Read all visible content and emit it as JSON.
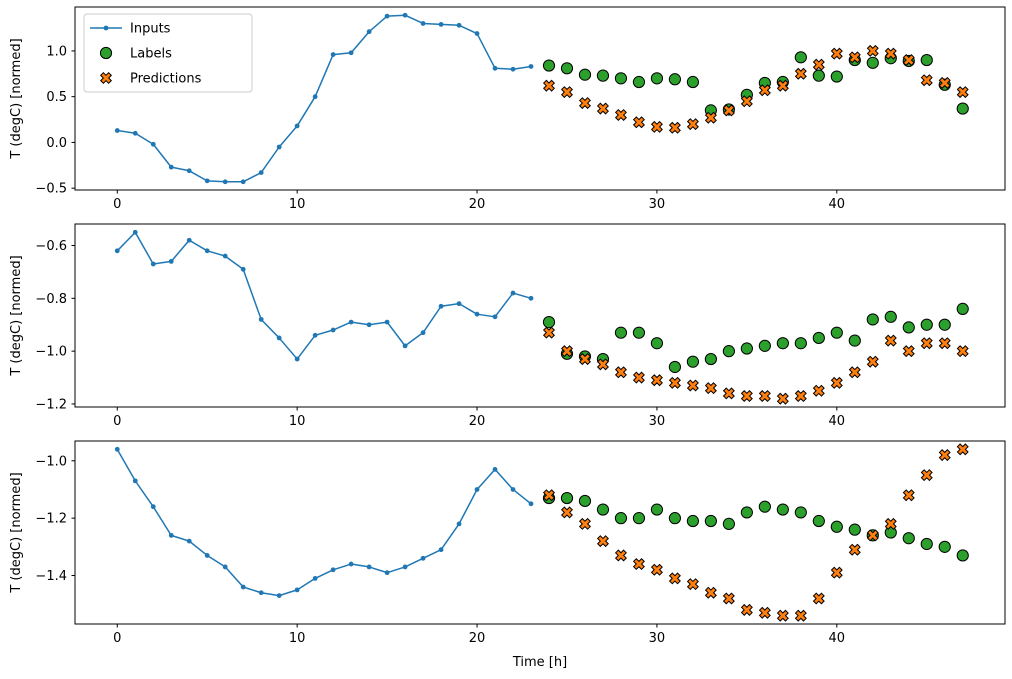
{
  "figure": {
    "background": "#ffffff",
    "axes_background": "#ffffff",
    "spine_color": "#000000",
    "xlabel": "Time [h]",
    "ylabel": "T (degC) [normed]",
    "legend": {
      "position": "upper-left",
      "border_color": "#cccccc",
      "entries": [
        {
          "label": "Inputs",
          "marker": "line-dot",
          "color": "#1f77b4"
        },
        {
          "label": "Labels",
          "marker": "circle",
          "color": "#2ca02c",
          "edge_color": "#000000"
        },
        {
          "label": "Predictions",
          "marker": "X",
          "color": "#ff7f0e",
          "edge_color": "#000000"
        }
      ]
    }
  },
  "chart_data": [
    {
      "type": "line",
      "title": "",
      "xlabel": "",
      "ylabel": "T (degC) [normed]",
      "xlim": [
        -2.35,
        49.35
      ],
      "ylim": [
        -0.52,
        1.48
      ],
      "xticks": [
        0,
        10,
        20,
        30,
        40
      ],
      "yticks": [
        -0.5,
        0.0,
        0.5,
        1.0
      ],
      "grid": false,
      "show_legend": true,
      "show_xlabel": false,
      "series": [
        {
          "name": "Inputs",
          "style": "line-dot",
          "color": "#1f77b4",
          "x": [
            0,
            1,
            2,
            3,
            4,
            5,
            6,
            7,
            8,
            9,
            10,
            11,
            12,
            13,
            14,
            15,
            16,
            17,
            18,
            19,
            20,
            21,
            22,
            23
          ],
          "y": [
            0.13,
            0.1,
            -0.02,
            -0.27,
            -0.31,
            -0.42,
            -0.43,
            -0.43,
            -0.33,
            -0.05,
            0.18,
            0.5,
            0.96,
            0.98,
            1.21,
            1.38,
            1.39,
            1.3,
            1.29,
            1.28,
            1.19,
            0.81,
            0.8,
            0.83
          ]
        },
        {
          "name": "Labels",
          "style": "circle",
          "color": "#2ca02c",
          "edge": "#000000",
          "x": [
            24,
            25,
            26,
            27,
            28,
            29,
            30,
            31,
            32,
            33,
            34,
            35,
            36,
            37,
            38,
            39,
            40,
            41,
            42,
            43,
            44,
            45,
            46,
            47
          ],
          "y": [
            0.84,
            0.81,
            0.74,
            0.73,
            0.7,
            0.66,
            0.7,
            0.69,
            0.66,
            0.35,
            0.36,
            0.52,
            0.65,
            0.66,
            0.93,
            0.73,
            0.72,
            0.9,
            0.87,
            0.92,
            0.89,
            0.9,
            0.63,
            0.37
          ]
        },
        {
          "name": "Predictions",
          "style": "X",
          "color": "#ff7f0e",
          "edge": "#000000",
          "x": [
            24,
            25,
            26,
            27,
            28,
            29,
            30,
            31,
            32,
            33,
            34,
            35,
            36,
            37,
            38,
            39,
            40,
            41,
            42,
            43,
            44,
            45,
            46,
            47
          ],
          "y": [
            0.62,
            0.55,
            0.43,
            0.37,
            0.3,
            0.22,
            0.17,
            0.16,
            0.2,
            0.27,
            0.35,
            0.45,
            0.57,
            0.62,
            0.75,
            0.85,
            0.97,
            0.93,
            1.0,
            0.97,
            0.9,
            0.68,
            0.65,
            0.55
          ]
        }
      ]
    },
    {
      "type": "line",
      "title": "",
      "xlabel": "",
      "ylabel": "T (degC) [normed]",
      "xlim": [
        -2.35,
        49.35
      ],
      "ylim": [
        -1.2115,
        -0.5185
      ],
      "xticks": [
        0,
        10,
        20,
        30,
        40
      ],
      "yticks": [
        -0.6,
        -0.8,
        -1.0,
        -1.2
      ],
      "grid": false,
      "show_legend": false,
      "show_xlabel": false,
      "series": [
        {
          "name": "Inputs",
          "style": "line-dot",
          "color": "#1f77b4",
          "x": [
            0,
            1,
            2,
            3,
            4,
            5,
            6,
            7,
            8,
            9,
            10,
            11,
            12,
            13,
            14,
            15,
            16,
            17,
            18,
            19,
            20,
            21,
            22,
            23
          ],
          "y": [
            -0.62,
            -0.55,
            -0.67,
            -0.66,
            -0.58,
            -0.62,
            -0.64,
            -0.69,
            -0.88,
            -0.95,
            -1.03,
            -0.94,
            -0.92,
            -0.89,
            -0.9,
            -0.89,
            -0.98,
            -0.93,
            -0.83,
            -0.82,
            -0.86,
            -0.87,
            -0.78,
            -0.8
          ]
        },
        {
          "name": "Labels",
          "style": "circle",
          "color": "#2ca02c",
          "edge": "#000000",
          "x": [
            24,
            25,
            26,
            27,
            28,
            29,
            30,
            31,
            32,
            33,
            34,
            35,
            36,
            37,
            38,
            39,
            40,
            41,
            42,
            43,
            44,
            45,
            46,
            47
          ],
          "y": [
            -0.89,
            -1.01,
            -1.02,
            -1.03,
            -0.93,
            -0.93,
            -0.97,
            -1.06,
            -1.04,
            -1.03,
            -1.0,
            -0.99,
            -0.98,
            -0.97,
            -0.97,
            -0.95,
            -0.93,
            -0.96,
            -0.88,
            -0.87,
            -0.91,
            -0.9,
            -0.9,
            -0.84
          ]
        },
        {
          "name": "Predictions",
          "style": "X",
          "color": "#ff7f0e",
          "edge": "#000000",
          "x": [
            24,
            25,
            26,
            27,
            28,
            29,
            30,
            31,
            32,
            33,
            34,
            35,
            36,
            37,
            38,
            39,
            40,
            41,
            42,
            43,
            44,
            45,
            46,
            47
          ],
          "y": [
            -0.93,
            -1.0,
            -1.03,
            -1.05,
            -1.08,
            -1.1,
            -1.11,
            -1.12,
            -1.13,
            -1.14,
            -1.16,
            -1.17,
            -1.17,
            -1.18,
            -1.17,
            -1.15,
            -1.12,
            -1.08,
            -1.04,
            -0.96,
            -1.0,
            -0.97,
            -0.97,
            -1.0
          ]
        }
      ]
    },
    {
      "type": "line",
      "title": "",
      "xlabel": "Time [h]",
      "ylabel": "T (degC) [normed]",
      "xlim": [
        -2.35,
        49.35
      ],
      "ylim": [
        -1.569,
        -0.931
      ],
      "xticks": [
        0,
        10,
        20,
        30,
        40
      ],
      "yticks": [
        -1.0,
        -1.2,
        -1.4
      ],
      "grid": false,
      "show_legend": false,
      "show_xlabel": true,
      "series": [
        {
          "name": "Inputs",
          "style": "line-dot",
          "color": "#1f77b4",
          "x": [
            0,
            1,
            2,
            3,
            4,
            5,
            6,
            7,
            8,
            9,
            10,
            11,
            12,
            13,
            14,
            15,
            16,
            17,
            18,
            19,
            20,
            21,
            22,
            23
          ],
          "y": [
            -0.96,
            -1.07,
            -1.16,
            -1.26,
            -1.28,
            -1.33,
            -1.37,
            -1.44,
            -1.46,
            -1.47,
            -1.45,
            -1.41,
            -1.38,
            -1.36,
            -1.37,
            -1.39,
            -1.37,
            -1.34,
            -1.31,
            -1.22,
            -1.1,
            -1.03,
            -1.1,
            -1.15
          ]
        },
        {
          "name": "Labels",
          "style": "circle",
          "color": "#2ca02c",
          "edge": "#000000",
          "x": [
            24,
            25,
            26,
            27,
            28,
            29,
            30,
            31,
            32,
            33,
            34,
            35,
            36,
            37,
            38,
            39,
            40,
            41,
            42,
            43,
            44,
            45,
            46,
            47
          ],
          "y": [
            -1.13,
            -1.13,
            -1.14,
            -1.17,
            -1.2,
            -1.2,
            -1.17,
            -1.2,
            -1.21,
            -1.21,
            -1.22,
            -1.18,
            -1.16,
            -1.17,
            -1.18,
            -1.21,
            -1.23,
            -1.24,
            -1.26,
            -1.25,
            -1.27,
            -1.29,
            -1.3,
            -1.33
          ]
        },
        {
          "name": "Predictions",
          "style": "X",
          "color": "#ff7f0e",
          "edge": "#000000",
          "x": [
            24,
            25,
            26,
            27,
            28,
            29,
            30,
            31,
            32,
            33,
            34,
            35,
            36,
            37,
            38,
            39,
            40,
            41,
            42,
            43,
            44,
            45,
            46,
            47
          ],
          "y": [
            -1.12,
            -1.18,
            -1.22,
            -1.28,
            -1.33,
            -1.36,
            -1.38,
            -1.41,
            -1.43,
            -1.46,
            -1.48,
            -1.52,
            -1.53,
            -1.54,
            -1.54,
            -1.48,
            -1.39,
            -1.31,
            -1.26,
            -1.22,
            -1.12,
            -1.05,
            -0.98,
            -0.96
          ]
        }
      ]
    }
  ]
}
